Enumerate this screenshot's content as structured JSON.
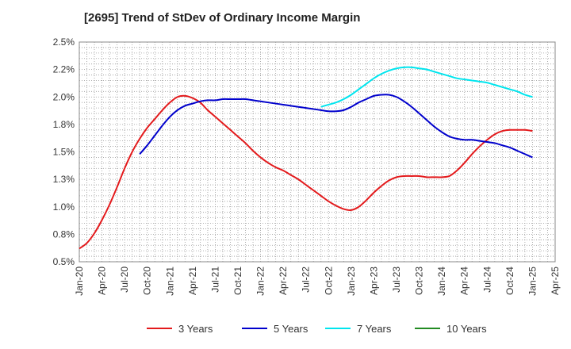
{
  "chart_data": {
    "type": "line",
    "title": "[2695]  Trend of StDev of Ordinary Income Margin",
    "xlabel": "",
    "ylabel": "",
    "x_ticks": [
      "Jan-20",
      "Apr-20",
      "Jul-20",
      "Oct-20",
      "Jan-21",
      "Apr-21",
      "Jul-21",
      "Oct-21",
      "Jan-22",
      "Apr-22",
      "Jul-22",
      "Oct-22",
      "Jan-23",
      "Apr-23",
      "Jul-23",
      "Oct-23",
      "Jan-24",
      "Apr-24",
      "Jul-24",
      "Oct-24",
      "Jan-25",
      "Apr-25"
    ],
    "y_ticks": [
      "0.5%",
      "0.8%",
      "1.0%",
      "1.3%",
      "1.5%",
      "1.8%",
      "2.0%",
      "2.2%",
      "2.5%"
    ],
    "ylim": [
      0.5,
      2.5
    ],
    "grid": true,
    "legend_position": "bottom",
    "series": [
      {
        "name": "3 Years",
        "color": "#e31a1c",
        "points": [
          [
            "Jan-20",
            0.62
          ],
          [
            "Feb-20",
            0.67
          ],
          [
            "Mar-20",
            0.76
          ],
          [
            "Apr-20",
            0.88
          ],
          [
            "May-20",
            1.02
          ],
          [
            "Jun-20",
            1.18
          ],
          [
            "Jul-20",
            1.35
          ],
          [
            "Aug-20",
            1.5
          ],
          [
            "Sep-20",
            1.62
          ],
          [
            "Oct-20",
            1.72
          ],
          [
            "Nov-20",
            1.8
          ],
          [
            "Dec-20",
            1.88
          ],
          [
            "Jan-21",
            1.95
          ],
          [
            "Feb-21",
            2.0
          ],
          [
            "Mar-21",
            2.01
          ],
          [
            "Apr-21",
            1.99
          ],
          [
            "May-21",
            1.95
          ],
          [
            "Jun-21",
            1.88
          ],
          [
            "Jul-21",
            1.82
          ],
          [
            "Aug-21",
            1.76
          ],
          [
            "Sep-21",
            1.7
          ],
          [
            "Oct-21",
            1.64
          ],
          [
            "Nov-21",
            1.58
          ],
          [
            "Dec-21",
            1.51
          ],
          [
            "Jan-22",
            1.45
          ],
          [
            "Feb-22",
            1.4
          ],
          [
            "Mar-22",
            1.36
          ],
          [
            "Apr-22",
            1.33
          ],
          [
            "May-22",
            1.29
          ],
          [
            "Jun-22",
            1.25
          ],
          [
            "Jul-22",
            1.2
          ],
          [
            "Aug-22",
            1.15
          ],
          [
            "Sep-22",
            1.1
          ],
          [
            "Oct-22",
            1.05
          ],
          [
            "Nov-22",
            1.01
          ],
          [
            "Dec-22",
            0.98
          ],
          [
            "Jan-23",
            0.97
          ],
          [
            "Feb-23",
            1.0
          ],
          [
            "Mar-23",
            1.06
          ],
          [
            "Apr-23",
            1.13
          ],
          [
            "May-23",
            1.19
          ],
          [
            "Jun-23",
            1.24
          ],
          [
            "Jul-23",
            1.27
          ],
          [
            "Aug-23",
            1.28
          ],
          [
            "Sep-23",
            1.28
          ],
          [
            "Oct-23",
            1.28
          ],
          [
            "Nov-23",
            1.27
          ],
          [
            "Dec-23",
            1.27
          ],
          [
            "Jan-24",
            1.27
          ],
          [
            "Feb-24",
            1.28
          ],
          [
            "Mar-24",
            1.33
          ],
          [
            "Apr-24",
            1.4
          ],
          [
            "May-24",
            1.48
          ],
          [
            "Jun-24",
            1.55
          ],
          [
            "Jul-24",
            1.61
          ],
          [
            "Aug-24",
            1.66
          ],
          [
            "Sep-24",
            1.69
          ],
          [
            "Oct-24",
            1.7
          ],
          [
            "Nov-24",
            1.7
          ],
          [
            "Dec-24",
            1.7
          ],
          [
            "Jan-25",
            1.69
          ]
        ]
      },
      {
        "name": "5 Years",
        "color": "#0000cc",
        "points": [
          [
            "Sep-20",
            1.48
          ],
          [
            "Oct-20",
            1.56
          ],
          [
            "Nov-20",
            1.65
          ],
          [
            "Dec-20",
            1.74
          ],
          [
            "Jan-21",
            1.82
          ],
          [
            "Feb-21",
            1.88
          ],
          [
            "Mar-21",
            1.92
          ],
          [
            "Apr-21",
            1.94
          ],
          [
            "May-21",
            1.96
          ],
          [
            "Jun-21",
            1.97
          ],
          [
            "Jul-21",
            1.97
          ],
          [
            "Aug-21",
            1.98
          ],
          [
            "Sep-21",
            1.98
          ],
          [
            "Oct-21",
            1.98
          ],
          [
            "Nov-21",
            1.98
          ],
          [
            "Dec-21",
            1.97
          ],
          [
            "Jan-22",
            1.96
          ],
          [
            "Feb-22",
            1.95
          ],
          [
            "Mar-22",
            1.94
          ],
          [
            "Apr-22",
            1.93
          ],
          [
            "May-22",
            1.92
          ],
          [
            "Jun-22",
            1.91
          ],
          [
            "Jul-22",
            1.9
          ],
          [
            "Aug-22",
            1.89
          ],
          [
            "Sep-22",
            1.88
          ],
          [
            "Oct-22",
            1.87
          ],
          [
            "Nov-22",
            1.87
          ],
          [
            "Dec-22",
            1.88
          ],
          [
            "Jan-23",
            1.91
          ],
          [
            "Feb-23",
            1.95
          ],
          [
            "Mar-23",
            1.98
          ],
          [
            "Apr-23",
            2.01
          ],
          [
            "May-23",
            2.02
          ],
          [
            "Jun-23",
            2.02
          ],
          [
            "Jul-23",
            2.0
          ],
          [
            "Aug-23",
            1.96
          ],
          [
            "Sep-23",
            1.91
          ],
          [
            "Oct-23",
            1.85
          ],
          [
            "Nov-23",
            1.79
          ],
          [
            "Dec-23",
            1.73
          ],
          [
            "Jan-24",
            1.68
          ],
          [
            "Feb-24",
            1.64
          ],
          [
            "Mar-24",
            1.62
          ],
          [
            "Apr-24",
            1.61
          ],
          [
            "May-24",
            1.61
          ],
          [
            "Jun-24",
            1.6
          ],
          [
            "Jul-24",
            1.59
          ],
          [
            "Aug-24",
            1.58
          ],
          [
            "Sep-24",
            1.56
          ],
          [
            "Oct-24",
            1.54
          ],
          [
            "Nov-24",
            1.51
          ],
          [
            "Dec-24",
            1.48
          ],
          [
            "Jan-25",
            1.45
          ]
        ]
      },
      {
        "name": "7 Years",
        "color": "#00e5ee",
        "points": [
          [
            "Sep-22",
            1.91
          ],
          [
            "Oct-22",
            1.93
          ],
          [
            "Nov-22",
            1.95
          ],
          [
            "Dec-22",
            1.98
          ],
          [
            "Jan-23",
            2.02
          ],
          [
            "Feb-23",
            2.07
          ],
          [
            "Mar-23",
            2.12
          ],
          [
            "Apr-23",
            2.17
          ],
          [
            "May-23",
            2.21
          ],
          [
            "Jun-23",
            2.24
          ],
          [
            "Jul-23",
            2.26
          ],
          [
            "Aug-23",
            2.27
          ],
          [
            "Sep-23",
            2.27
          ],
          [
            "Oct-23",
            2.26
          ],
          [
            "Nov-23",
            2.25
          ],
          [
            "Dec-23",
            2.23
          ],
          [
            "Jan-24",
            2.21
          ],
          [
            "Feb-24",
            2.19
          ],
          [
            "Mar-24",
            2.17
          ],
          [
            "Apr-24",
            2.16
          ],
          [
            "May-24",
            2.15
          ],
          [
            "Jun-24",
            2.14
          ],
          [
            "Jul-24",
            2.13
          ],
          [
            "Aug-24",
            2.11
          ],
          [
            "Sep-24",
            2.09
          ],
          [
            "Oct-24",
            2.07
          ],
          [
            "Nov-24",
            2.05
          ],
          [
            "Dec-24",
            2.02
          ],
          [
            "Jan-25",
            2.0
          ]
        ]
      },
      {
        "name": "10 Years",
        "color": "#228b22",
        "points": []
      }
    ]
  }
}
